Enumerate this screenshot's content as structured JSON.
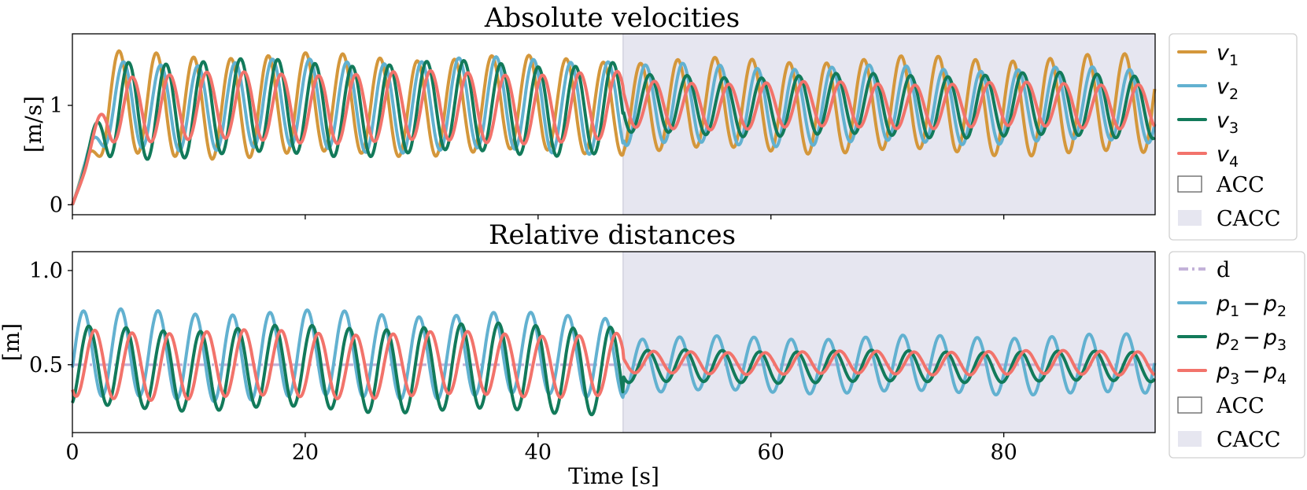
{
  "chart_data": [
    {
      "type": "line",
      "title": "Absolute velocities",
      "xlabel": "",
      "ylabel": "[m/s]",
      "xlim": [
        0,
        93
      ],
      "ylim": [
        -0.1,
        1.72
      ],
      "xticks": [
        0,
        20,
        40,
        60,
        80
      ],
      "yticks": [
        0,
        1
      ],
      "ytick_labels": [
        "0",
        "1"
      ],
      "grid": false,
      "legend_position": "outside-right",
      "shaded_regions": [
        {
          "label": "ACC",
          "x_start": 0,
          "x_end": 47.3,
          "color": "#ffffff"
        },
        {
          "label": "CACC",
          "x_start": 47.3,
          "x_end": 93,
          "color": "#e6e6f0"
        }
      ],
      "series": [
        {
          "name": "v1",
          "label_base": "v",
          "label_sub": "1",
          "color": "#d4973b",
          "phase": 0.0,
          "segments": [
            {
              "from": 0,
              "to": 47.3,
              "mean": 1.0,
              "amp": 0.49
            },
            {
              "from": 47.3,
              "to": 93,
              "mean": 1.0,
              "amp": 0.47
            }
          ]
        },
        {
          "name": "v2",
          "label_base": "v",
          "label_sub": "2",
          "color": "#62b1d0",
          "phase": 0.8,
          "segments": [
            {
              "from": 0,
              "to": 47.3,
              "mean": 1.0,
              "amp": 0.44
            },
            {
              "from": 47.3,
              "to": 93,
              "mean": 1.0,
              "amp": 0.38
            }
          ]
        },
        {
          "name": "v3",
          "label_base": "v",
          "label_sub": "3",
          "color": "#127a5a",
          "phase": 1.6,
          "segments": [
            {
              "from": 0,
              "to": 47.3,
              "mean": 0.97,
              "amp": 0.47
            },
            {
              "from": 47.3,
              "to": 93,
              "mean": 1.0,
              "amp": 0.3
            }
          ]
        },
        {
          "name": "v4",
          "label_base": "v",
          "label_sub": "4",
          "color": "#f2736b",
          "phase": 2.3,
          "segments": [
            {
              "from": 0,
              "to": 47.3,
              "mean": 0.98,
              "amp": 0.33
            },
            {
              "from": 47.3,
              "to": 93,
              "mean": 1.0,
              "amp": 0.23
            }
          ]
        }
      ]
    },
    {
      "type": "line",
      "title": "Relative distances",
      "xlabel": "Time [s]",
      "ylabel": "[m]",
      "xlim": [
        0,
        93
      ],
      "ylim": [
        0.14,
        1.1
      ],
      "xticks": [
        0,
        20,
        40,
        60,
        80
      ],
      "yticks": [
        0.5,
        1.0
      ],
      "ytick_labels": [
        "0.5",
        "1.0"
      ],
      "grid": false,
      "legend_position": "outside-right",
      "shaded_regions": [
        {
          "label": "ACC",
          "x_start": 0,
          "x_end": 47.3,
          "color": "#ffffff"
        },
        {
          "label": "CACC",
          "x_start": 47.3,
          "x_end": 93,
          "color": "#e6e6f0"
        }
      ],
      "reference": {
        "name": "d",
        "label": "d",
        "value": 0.5,
        "color": "#c3b2d9",
        "style": "dashdot"
      },
      "series": [
        {
          "name": "p1 - p2",
          "label_base": "p",
          "label_sub_a": "1",
          "label_sub_b": "2",
          "color": "#62b1d0",
          "phase": 0.3,
          "segments": [
            {
              "from": 0,
              "to": 47.3,
              "mean": 0.55,
              "amp": 0.22
            },
            {
              "from": 47.3,
              "to": 93,
              "mean": 0.5,
              "amp": 0.15
            }
          ]
        },
        {
          "name": "p2 - p3",
          "label_base": "p",
          "label_sub_a": "2",
          "label_sub_b": "3",
          "color": "#127a5a",
          "phase": 1.2,
          "segments": [
            {
              "from": 0,
              "to": 47.3,
              "mean": 0.48,
              "amp": 0.22
            },
            {
              "from": 47.3,
              "to": 93,
              "mean": 0.49,
              "amp": 0.08
            }
          ]
        },
        {
          "name": "p3 - p4",
          "label_base": "p",
          "label_sub_a": "3",
          "label_sub_b": "4",
          "color": "#f2736b",
          "phase": 2.2,
          "segments": [
            {
              "from": 0,
              "to": 47.3,
              "mean": 0.5,
              "amp": 0.17
            },
            {
              "from": 47.3,
              "to": 93,
              "mean": 0.51,
              "amp": 0.06
            }
          ]
        }
      ]
    }
  ],
  "legend_labels": {
    "acc": "ACC",
    "cacc": "CACC",
    "minus": "−"
  }
}
